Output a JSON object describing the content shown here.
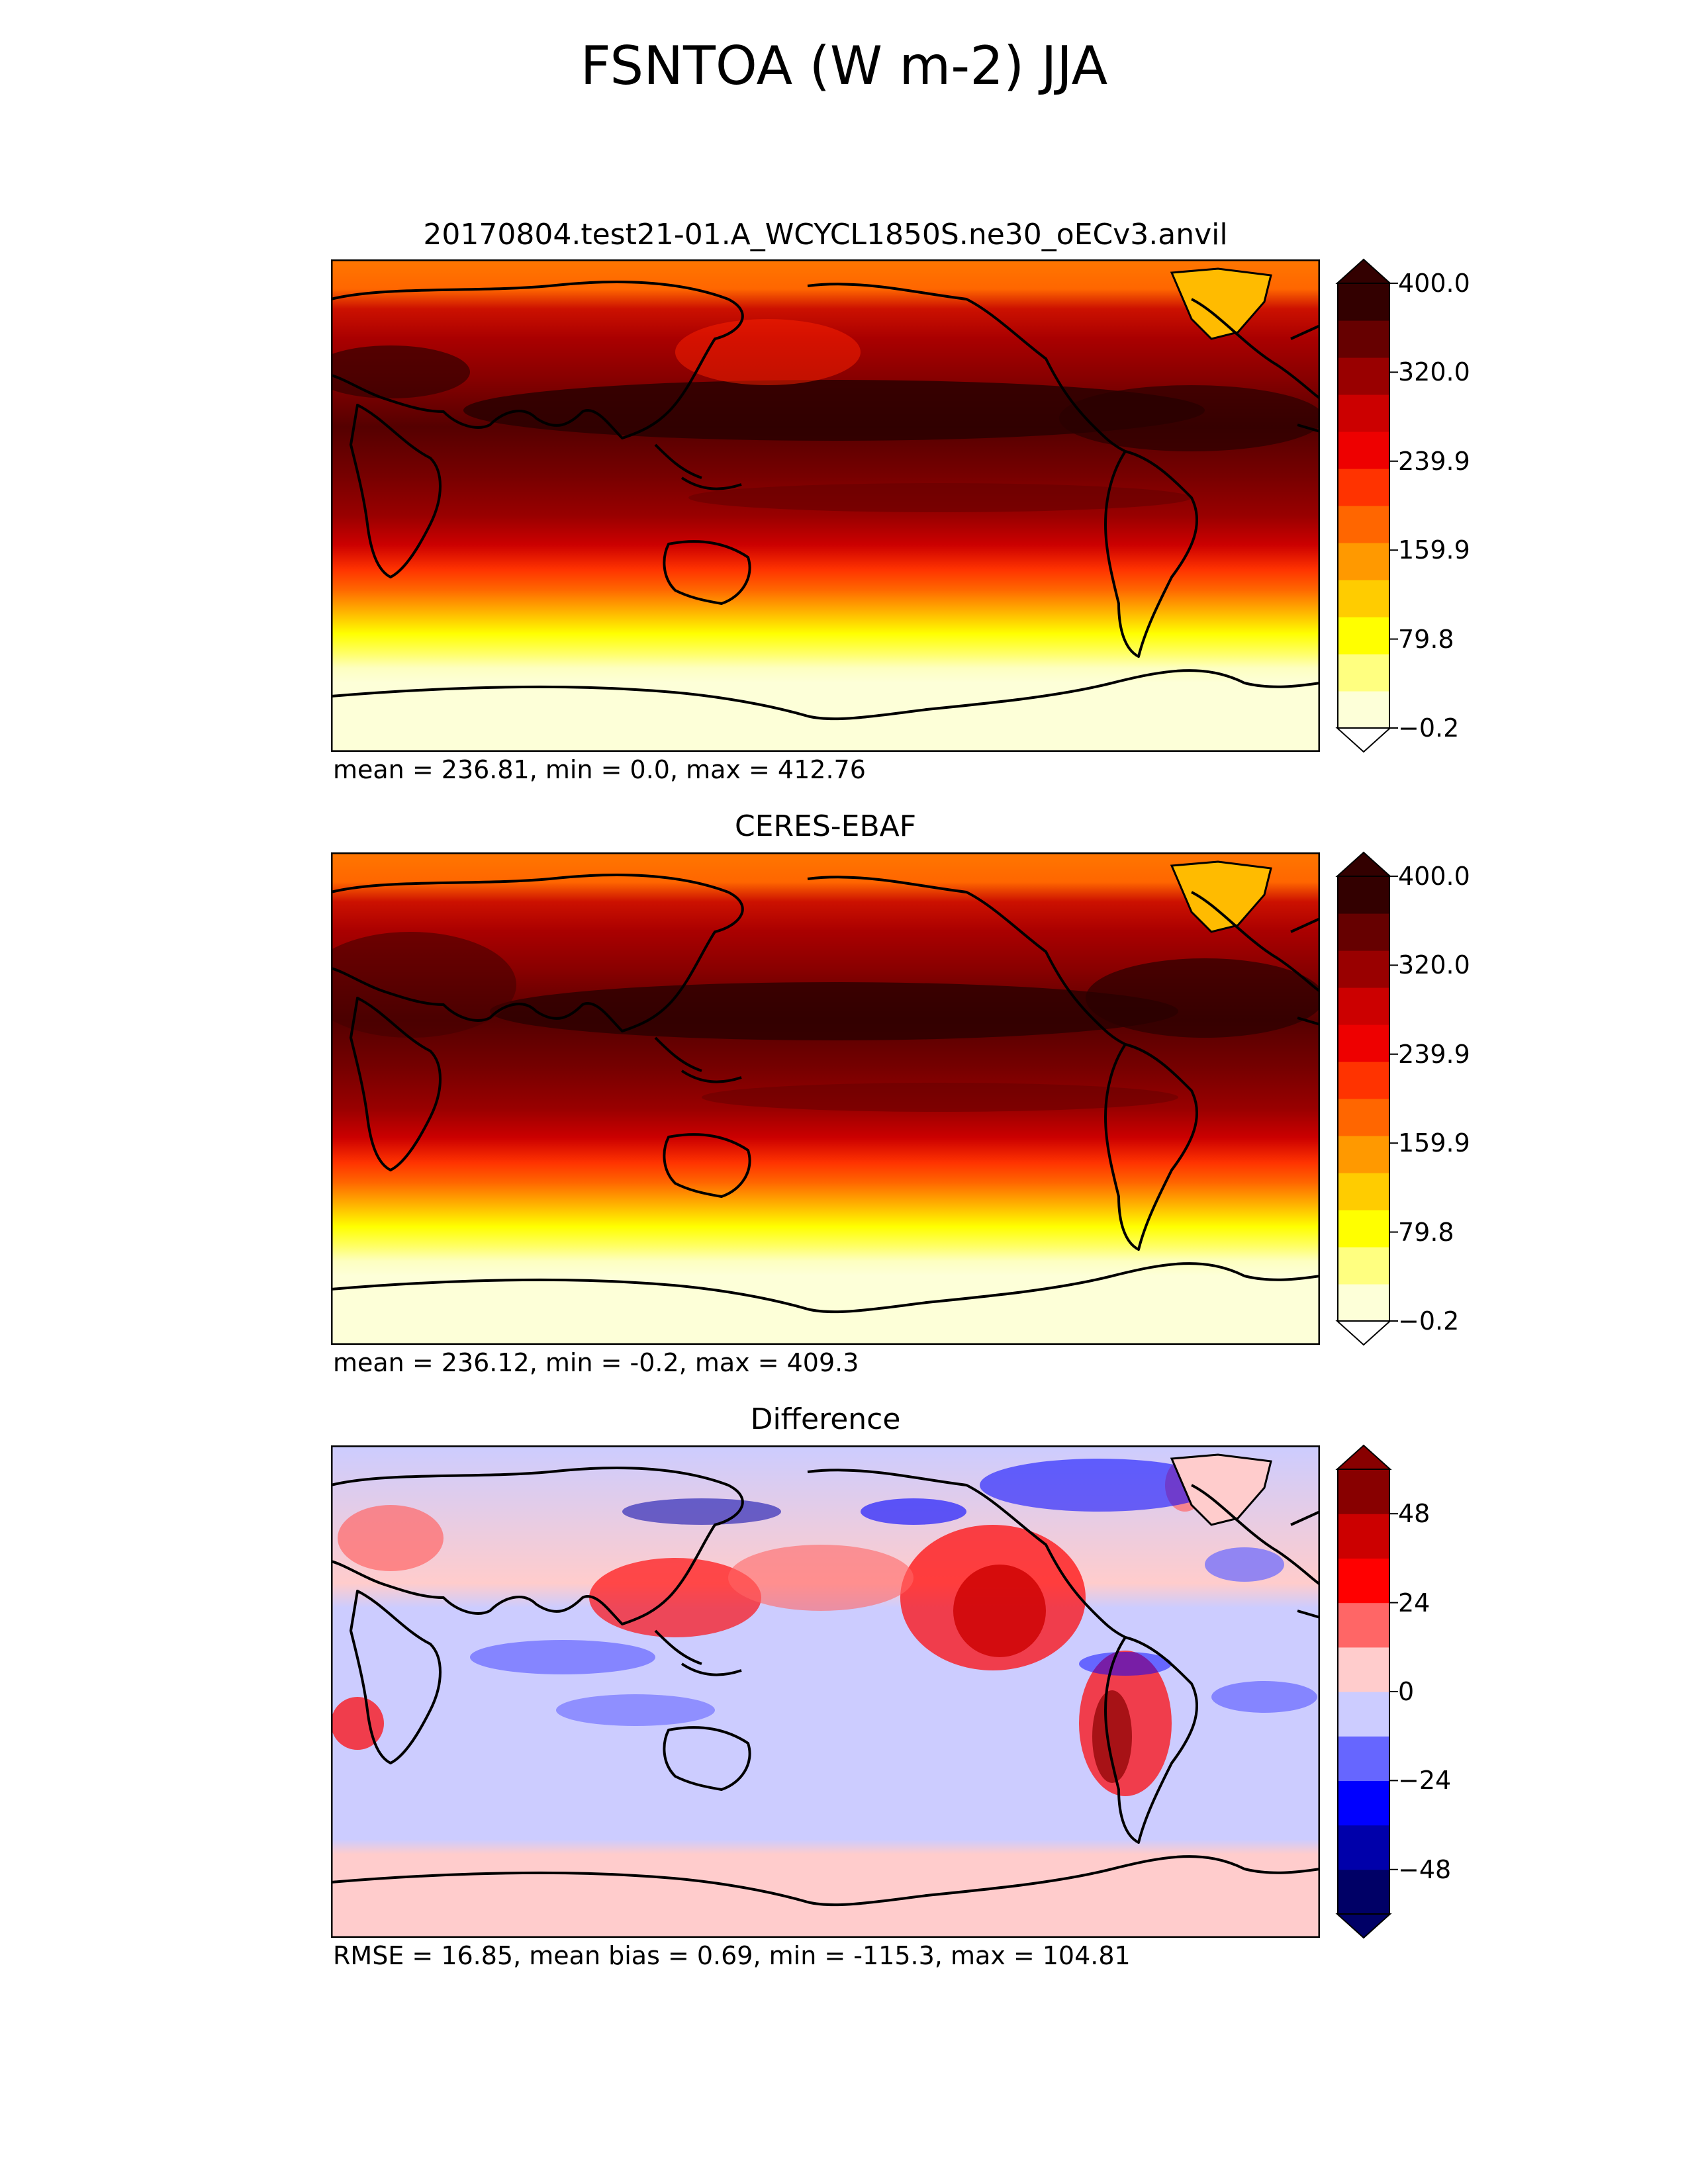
{
  "figure": {
    "title": "FSNTOA (W m-2) JJA"
  },
  "panels": [
    {
      "id": "test",
      "title": "20170804.test21-01.A_WCYCL1850S.ne30_oECv3.anvil",
      "stats": "mean = 236.81, min = 0.0, max = 412.76",
      "colorbar": {
        "ticks": [
          "400.0",
          "320.0",
          "239.9",
          "159.9",
          "79.8",
          "−0.2"
        ],
        "colors": [
          "#fdffd8",
          "#ffff80",
          "#ffff00",
          "#ffcc00",
          "#ff9900",
          "#ff6600",
          "#ff3300",
          "#ee0000",
          "#cc0000",
          "#990000",
          "#660000",
          "#330000"
        ],
        "extend": "both"
      }
    },
    {
      "id": "reference",
      "title": "CERES-EBAF",
      "stats": "mean = 236.12, min = -0.2, max = 409.3",
      "colorbar": {
        "ticks": [
          "400.0",
          "320.0",
          "239.9",
          "159.9",
          "79.8",
          "−0.2"
        ],
        "colors": [
          "#fdffd8",
          "#ffff80",
          "#ffff00",
          "#ffcc00",
          "#ff9900",
          "#ff6600",
          "#ff3300",
          "#ee0000",
          "#cc0000",
          "#990000",
          "#660000",
          "#330000"
        ],
        "extend": "both"
      }
    },
    {
      "id": "difference",
      "title": "Difference",
      "stats": "RMSE = 16.85, mean bias = 0.69, min = -115.3, max = 104.81",
      "colorbar": {
        "ticks": [
          "48",
          "24",
          "0",
          "−24",
          "−48"
        ],
        "colors": [
          "#000066",
          "#0000aa",
          "#0000ff",
          "#6666ff",
          "#ccccff",
          "#ffcccc",
          "#ff6666",
          "#ff0000",
          "#cc0000",
          "#880000"
        ],
        "extend": "both"
      }
    }
  ]
}
